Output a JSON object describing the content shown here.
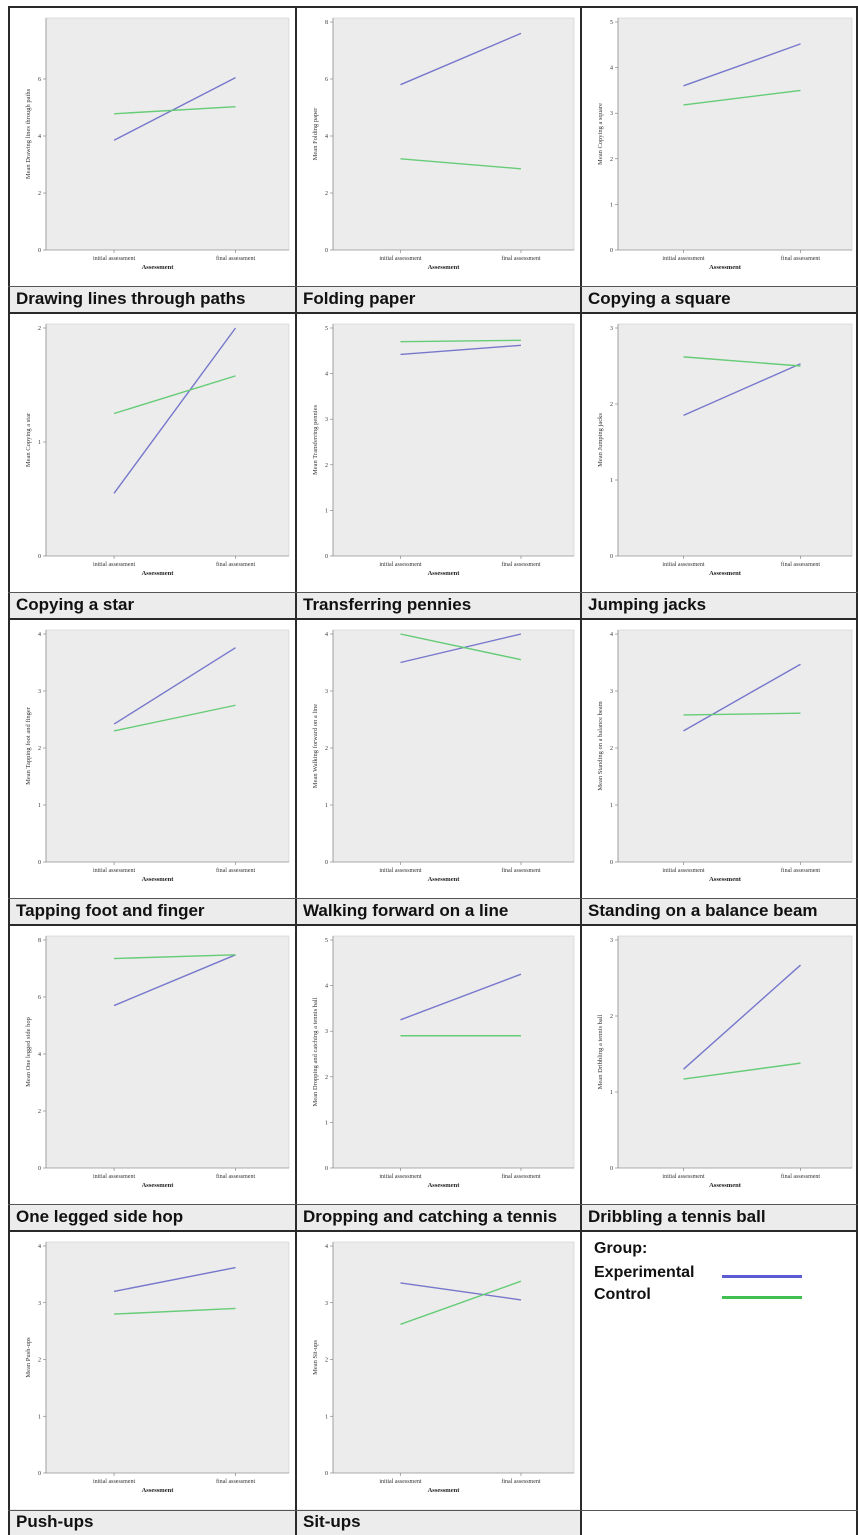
{
  "colors": {
    "experimental": "#7777cc",
    "control": "#66cc77",
    "plot_bg": "#ececec"
  },
  "legend": {
    "title": "Group:",
    "items": [
      {
        "label": "Experimental",
        "color": "#5b5bd6"
      },
      {
        "label": "Control",
        "color": "#40c050"
      }
    ]
  },
  "chart_data": [
    {
      "type": "line",
      "caption": "Drawing lines through paths",
      "ylabel": "Mean Drawing lines through paths",
      "xlabel": "Assessment",
      "categories": [
        "initial assessment",
        "final assessment"
      ],
      "ylim": [
        0,
        8
      ],
      "yticks": [
        0,
        2,
        4,
        6
      ],
      "series": [
        {
          "name": "Experimental",
          "values": [
            3.85,
            6.05
          ]
        },
        {
          "name": "Control",
          "values": [
            4.78,
            5.03
          ]
        }
      ]
    },
    {
      "type": "line",
      "caption": "Folding paper",
      "ylabel": "Mean Folding paper",
      "xlabel": "Assessment",
      "categories": [
        "initial assessment",
        "final assessment"
      ],
      "ylim": [
        0,
        8
      ],
      "yticks": [
        0,
        2,
        4,
        6,
        8
      ],
      "series": [
        {
          "name": "Experimental",
          "values": [
            5.8,
            7.6
          ]
        },
        {
          "name": "Control",
          "values": [
            3.2,
            2.85
          ]
        }
      ]
    },
    {
      "type": "line",
      "caption": "Copying a square",
      "ylabel": "Mean Copying a square",
      "xlabel": "Assessment",
      "categories": [
        "initial assessment",
        "final assessment"
      ],
      "ylim": [
        0,
        5
      ],
      "yticks": [
        0,
        1,
        2,
        3,
        4,
        5
      ],
      "series": [
        {
          "name": "Experimental",
          "values": [
            3.6,
            4.52
          ]
        },
        {
          "name": "Control",
          "values": [
            3.18,
            3.5
          ]
        }
      ]
    },
    {
      "type": "line",
      "caption": "Copying a star",
      "ylabel": "Mean Copying a star",
      "xlabel": "Assessment",
      "categories": [
        "initial assessment",
        "final assessment"
      ],
      "ylim": [
        0,
        2
      ],
      "yticks": [
        0,
        1,
        2
      ],
      "series": [
        {
          "name": "Experimental",
          "values": [
            0.55,
            2.0
          ]
        },
        {
          "name": "Control",
          "values": [
            1.25,
            1.58
          ]
        }
      ]
    },
    {
      "type": "line",
      "caption": "Transferring pennies",
      "ylabel": "Mean Transferring pennies",
      "xlabel": "Assessment",
      "categories": [
        "initial assessment",
        "final assessment"
      ],
      "ylim": [
        0,
        5
      ],
      "yticks": [
        0,
        1,
        2,
        3,
        4,
        5
      ],
      "series": [
        {
          "name": "Experimental",
          "values": [
            4.42,
            4.62
          ]
        },
        {
          "name": "Control",
          "values": [
            4.7,
            4.73
          ]
        }
      ]
    },
    {
      "type": "line",
      "caption": "Jumping jacks",
      "ylabel": "Mean Jumping jacks",
      "xlabel": "Assessment",
      "categories": [
        "initial assessment",
        "final assessment"
      ],
      "ylim": [
        0,
        3
      ],
      "yticks": [
        0,
        1,
        2,
        3
      ],
      "series": [
        {
          "name": "Experimental",
          "values": [
            1.85,
            2.53
          ]
        },
        {
          "name": "Control",
          "values": [
            2.62,
            2.5
          ]
        }
      ]
    },
    {
      "type": "line",
      "caption": "Tapping foot and finger",
      "ylabel": "Mean Tapping foot and finger",
      "xlabel": "Assessment",
      "categories": [
        "initial assessment",
        "final assessment"
      ],
      "ylim": [
        0,
        4
      ],
      "yticks": [
        0,
        1,
        2,
        3,
        4
      ],
      "series": [
        {
          "name": "Experimental",
          "values": [
            2.42,
            3.76
          ]
        },
        {
          "name": "Control",
          "values": [
            2.3,
            2.75
          ]
        }
      ]
    },
    {
      "type": "line",
      "caption": "Walking forward on a line",
      "ylabel": "Mean Walking forward on a line",
      "xlabel": "Assessment",
      "categories": [
        "initial assessment",
        "final assessment"
      ],
      "ylim": [
        0,
        4
      ],
      "yticks": [
        0,
        1,
        2,
        3,
        4
      ],
      "series": [
        {
          "name": "Experimental",
          "values": [
            3.5,
            4.0
          ]
        },
        {
          "name": "Control",
          "values": [
            4.0,
            3.55
          ]
        }
      ]
    },
    {
      "type": "line",
      "caption": "Standing on a balance beam",
      "ylabel": "Mean Standing on a balance beam",
      "xlabel": "Assessment",
      "categories": [
        "initial assessment",
        "final assessment"
      ],
      "ylim": [
        0,
        4
      ],
      "yticks": [
        0,
        1,
        2,
        3,
        4
      ],
      "series": [
        {
          "name": "Experimental",
          "values": [
            2.3,
            3.47
          ]
        },
        {
          "name": "Control",
          "values": [
            2.58,
            2.61
          ]
        }
      ]
    },
    {
      "type": "line",
      "caption": "One legged side hop",
      "ylabel": "Mean One legged side hop",
      "xlabel": "Assessment",
      "categories": [
        "initial assessment",
        "final assessment"
      ],
      "ylim": [
        0,
        8
      ],
      "yticks": [
        0,
        2,
        4,
        6,
        8
      ],
      "series": [
        {
          "name": "Experimental",
          "values": [
            5.7,
            7.48
          ]
        },
        {
          "name": "Control",
          "values": [
            7.35,
            7.48
          ]
        }
      ]
    },
    {
      "type": "line",
      "caption": "Dropping and catching a tennis",
      "ylabel": "Mean Dropping and catching a tennis ball",
      "xlabel": "Assessment",
      "categories": [
        "initial assessment",
        "final assessment"
      ],
      "ylim": [
        0,
        5
      ],
      "yticks": [
        0,
        1,
        2,
        3,
        4,
        5
      ],
      "series": [
        {
          "name": "Experimental",
          "values": [
            3.25,
            4.25
          ]
        },
        {
          "name": "Control",
          "values": [
            2.9,
            2.9
          ]
        }
      ]
    },
    {
      "type": "line",
      "caption": "Dribbling a tennis ball",
      "ylabel": "Mean Dribbling a tennis ball",
      "xlabel": "Assessment",
      "categories": [
        "initial assessment",
        "final assessment"
      ],
      "ylim": [
        0,
        3
      ],
      "yticks": [
        0,
        1,
        2,
        3
      ],
      "series": [
        {
          "name": "Experimental",
          "values": [
            1.3,
            2.67
          ]
        },
        {
          "name": "Control",
          "values": [
            1.17,
            1.38
          ]
        }
      ]
    },
    {
      "type": "line",
      "caption": "Push-ups",
      "ylabel": "Mean Push-ups",
      "xlabel": "Assessment",
      "categories": [
        "initial assessment",
        "final assessment"
      ],
      "ylim": [
        0,
        4
      ],
      "yticks": [
        0,
        1,
        2,
        3,
        4
      ],
      "series": [
        {
          "name": "Experimental",
          "values": [
            3.2,
            3.62
          ]
        },
        {
          "name": "Control",
          "values": [
            2.8,
            2.9
          ]
        }
      ]
    },
    {
      "type": "line",
      "caption": "Sit-ups",
      "ylabel": "Mean Sit-ups",
      "xlabel": "Assessment",
      "categories": [
        "initial assessment",
        "final assessment"
      ],
      "ylim": [
        0,
        4
      ],
      "yticks": [
        0,
        1,
        2,
        3,
        4
      ],
      "series": [
        {
          "name": "Experimental",
          "values": [
            3.35,
            3.05
          ]
        },
        {
          "name": "Control",
          "values": [
            2.62,
            3.38
          ]
        }
      ]
    }
  ]
}
